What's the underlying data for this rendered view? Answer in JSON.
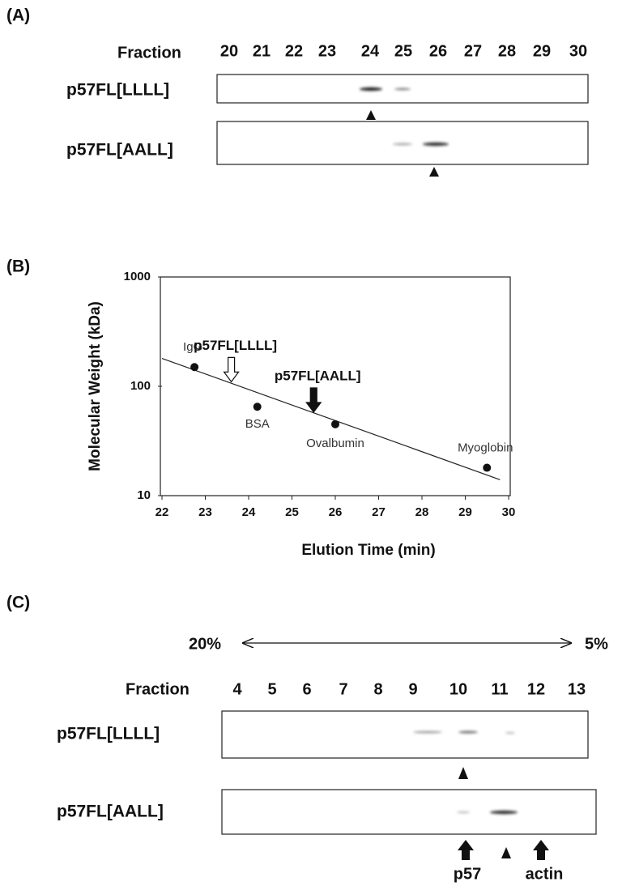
{
  "panel_a": {
    "label": "(A)",
    "fraction_label": "Fraction",
    "fractions": [
      20,
      21,
      22,
      23,
      24,
      25,
      26,
      27,
      28,
      29,
      30
    ],
    "rows": [
      "p57FL[LLLL]",
      "p57FL[AALL]"
    ]
  },
  "chart_data": {
    "type": "scatter",
    "label": "(B)",
    "x_label": "Elution Time (min)",
    "y_label": "Molecular Weight (kDa)",
    "xlim": [
      22,
      30
    ],
    "xticks": [
      22,
      23,
      24,
      25,
      26,
      27,
      28,
      29,
      30
    ],
    "ylim": [
      10,
      1000
    ],
    "yticks": [
      10,
      100,
      1000
    ],
    "y_log": true,
    "x": [
      22.75,
      24.2,
      26.0,
      29.5
    ],
    "values": [
      150,
      65,
      45,
      18
    ],
    "point_labels": [
      "IgG",
      "BSA",
      "Ovalbumin",
      "Myoglobin"
    ],
    "color": "#111111",
    "fit_line": {
      "x": [
        22,
        29.8
      ],
      "values": [
        180,
        14
      ]
    },
    "annotations": [
      {
        "text": "p57FL[LLLL]",
        "x": 23.6,
        "y": 110,
        "style": "open"
      },
      {
        "text": "p57FL[AALL]",
        "x": 25.5,
        "y": 58,
        "style": "filled"
      }
    ]
  },
  "panel_c": {
    "label": "(C)",
    "gradient_start": "20%",
    "gradient_end": "5%",
    "fraction_label": "Fraction",
    "fractions": [
      4,
      5,
      6,
      7,
      8,
      9,
      10,
      11,
      12,
      13
    ],
    "rows": [
      "p57FL[LLLL]",
      "p57FL[AALL]"
    ],
    "markers": [
      "p57",
      "actin"
    ]
  }
}
